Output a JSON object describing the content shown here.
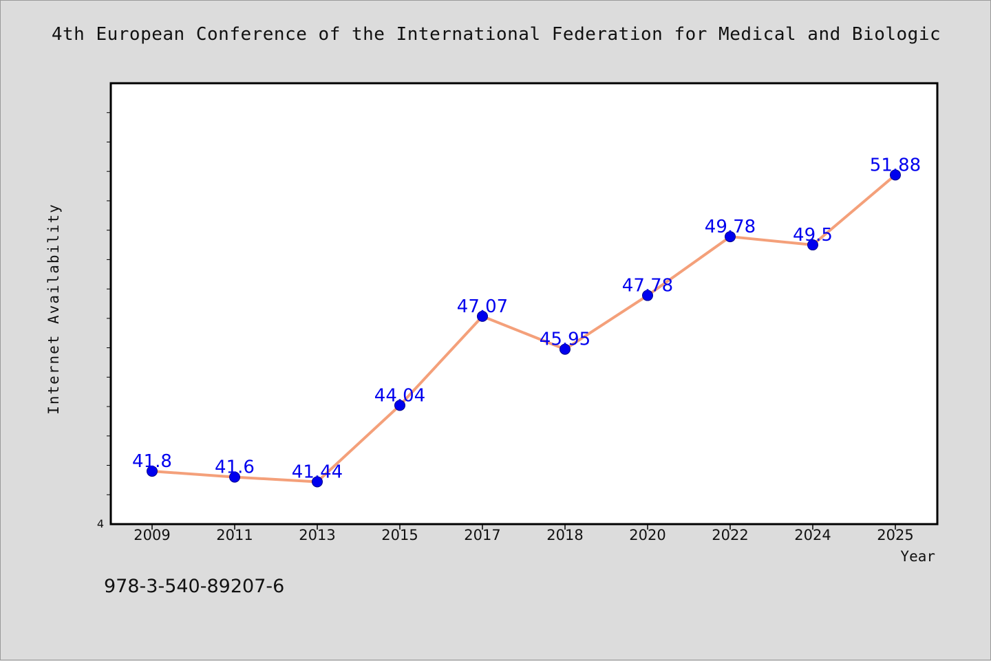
{
  "chart_data": {
    "type": "line",
    "title": "4th European Conference of the International Federation for Medical and Biologic",
    "xlabel": "Year",
    "ylabel": "Internet Availability",
    "categories": [
      "2009",
      "2011",
      "2013",
      "2015",
      "2017",
      "2018",
      "2020",
      "2022",
      "2024",
      "2025"
    ],
    "values": [
      41.8,
      41.6,
      41.44,
      44.04,
      47.07,
      45.95,
      47.78,
      49.78,
      49.5,
      51.88
    ],
    "value_labels": [
      "41.8",
      "41.6",
      "41.44",
      "44.04",
      "47.07",
      "45.95",
      "47.78",
      "49.78",
      "49.5",
      "51.88"
    ],
    "ylim": [
      40,
      55
    ],
    "y_tick_label": "4",
    "grid": false,
    "line_color": "#f4a07a",
    "marker_color": "#0000ee",
    "label_color": "#0000ee"
  },
  "footer": "978-3-540-89207-6"
}
